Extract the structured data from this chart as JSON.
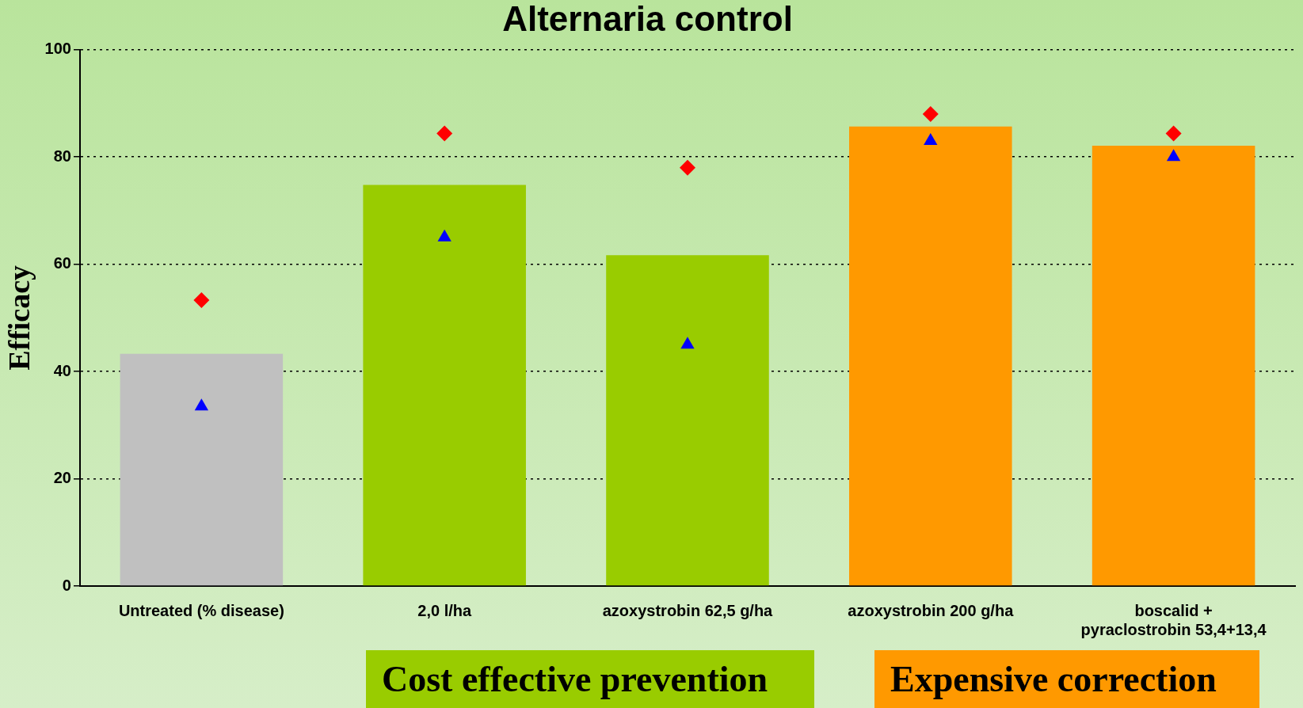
{
  "chart_data": {
    "type": "bar",
    "title": "Alternaria control",
    "ylabel": "Efficacy",
    "categories": [
      "Untreated (% disease)",
      "2,0 l/ha",
      "azoxystrobin 62,5 g/ha",
      "azoxystrobin 200 g/ha",
      "boscalid +\npyraclostrobin 53,4+13,4"
    ],
    "series": [
      {
        "colors": [
          "#c0c0c0",
          "#99cc00",
          "#99cc00",
          "#ff9900",
          "#ff9900"
        ],
        "values": [
          43.3,
          74.8,
          61.7,
          85.7,
          82.1
        ]
      },
      {
        "type": "scatter",
        "color": "#ff0000",
        "marker": "diamond",
        "values": [
          53.3,
          84.4,
          78,
          88,
          84.4
        ]
      },
      {
        "type": "scatter",
        "color": "#0000ff",
        "marker": "triangle",
        "values": [
          33.5,
          65,
          45,
          83,
          80
        ]
      }
    ],
    "ylim": [
      0,
      100
    ],
    "yticks": [
      0,
      20,
      40,
      60,
      80,
      100
    ],
    "grid": "y",
    "legend": false,
    "annotations": [
      "Cost effective prevention",
      "Expensive correction"
    ]
  }
}
